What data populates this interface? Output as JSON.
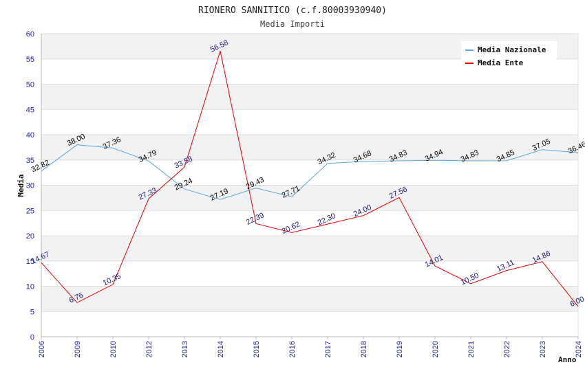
{
  "chart_data": {
    "type": "line",
    "title": "RIONERO SANNITICO (c.f.80003930940)",
    "subtitle": "Media Importi",
    "xlabel": "Anno",
    "ylabel": "Media",
    "ylim": [
      0,
      60
    ],
    "yticks": [
      0,
      5,
      10,
      15,
      20,
      25,
      30,
      35,
      40,
      45,
      50,
      55,
      60
    ],
    "grid": true,
    "legend_position": "top-right",
    "categories": [
      "2006",
      "2009",
      "2010",
      "2012",
      "2013",
      "2014",
      "2015",
      "2016",
      "2017",
      "2018",
      "2019",
      "2020",
      "2021",
      "2022",
      "2023",
      "2024"
    ],
    "series": [
      {
        "name": "Media Nazionale",
        "color": "#5aa7e0",
        "label_color": "#000000",
        "values": [
          32.82,
          38.0,
          37.36,
          34.79,
          29.24,
          27.19,
          29.43,
          27.71,
          34.32,
          34.68,
          34.83,
          34.94,
          34.83,
          34.85,
          37.05,
          36.46
        ],
        "labels": [
          "32.82",
          "38.00",
          "37.36",
          "34.79",
          "29.24",
          "27.19",
          "29.43",
          "27.71",
          "34.32",
          "34.68",
          "34.83",
          "34.94",
          "34.83",
          "34.85",
          "37.05",
          "36.46"
        ]
      },
      {
        "name": "Media Ente",
        "color": "#e00000",
        "label_color": "#1a1a80",
        "values": [
          14.67,
          6.76,
          10.35,
          27.33,
          33.58,
          56.58,
          22.39,
          20.62,
          22.3,
          24.0,
          27.56,
          14.01,
          10.5,
          13.11,
          14.86,
          6.0
        ],
        "labels": [
          "14.67",
          "6.76",
          "10.35",
          "27.33",
          "33.58",
          "56.58",
          "22.39",
          "20.62",
          "22.30",
          "24.00",
          "27.56",
          "14.01",
          "10.50",
          "13.11",
          "14.86",
          "6.00"
        ]
      }
    ]
  }
}
